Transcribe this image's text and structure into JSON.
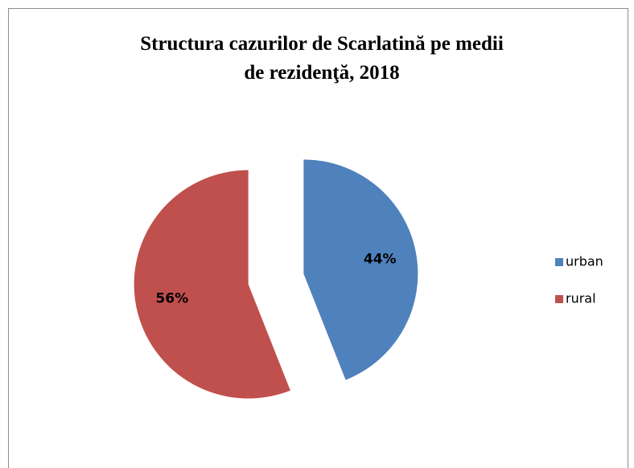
{
  "chart_data": {
    "type": "pie",
    "title": "Structura cazurilor de Scarlatină pe medii de rezidenţă, 2018",
    "title_lines": [
      "Structura cazurilor de Scarlatină pe medii",
      "de rezidenţă, 2018"
    ],
    "categories": [
      "urban",
      "rural"
    ],
    "values": [
      44,
      56
    ],
    "value_labels": [
      "44%",
      "56%"
    ],
    "colors": [
      "#4f81bd",
      "#c0504d"
    ],
    "legend": "right",
    "exploded": true
  }
}
